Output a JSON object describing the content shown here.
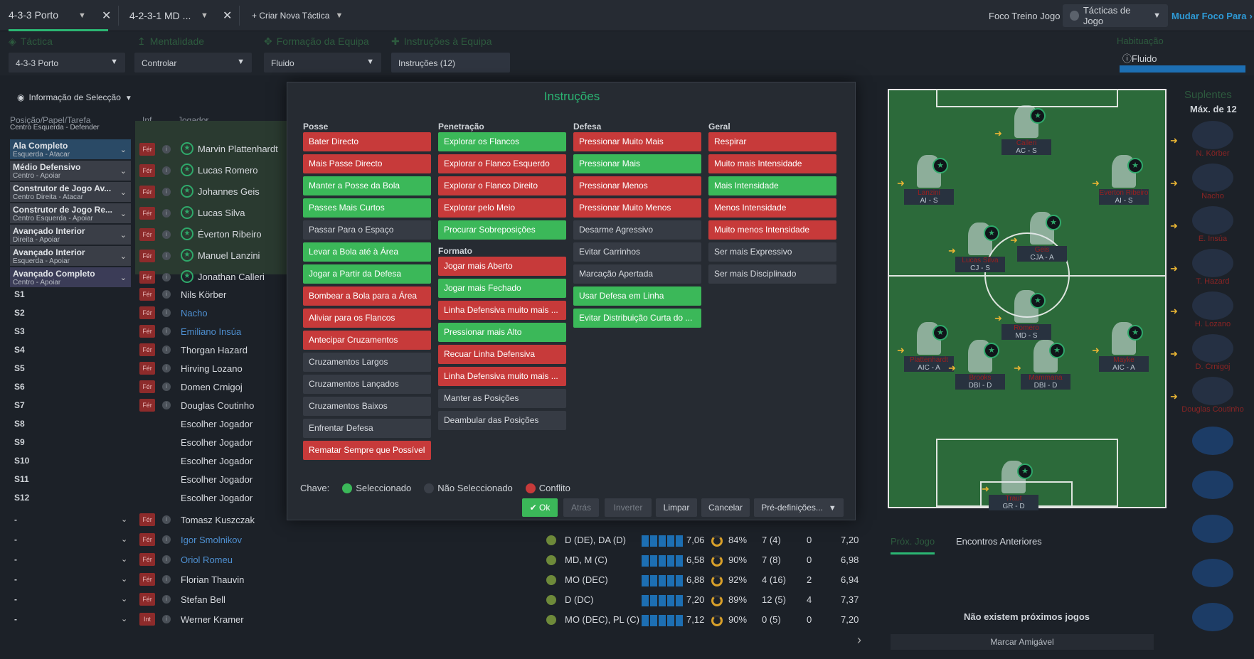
{
  "topbar": {
    "tabs": [
      {
        "label": "4-3-3 Porto"
      },
      {
        "label": "4-2-3-1 MD ..."
      }
    ],
    "new_tactic": "+ Criar Nova Táctica",
    "focus_label": "Foco Treino Jogo",
    "tactics_pill": "Tácticas de Jogo",
    "change_focus": "Mudar Foco Para"
  },
  "settings": {
    "tactic": {
      "label": "Táctica",
      "value": "4-3-3 Porto"
    },
    "mentality": {
      "label": "Mentalidade",
      "value": "Controlar"
    },
    "formation": {
      "label": "Formação da Equipa",
      "value": "Fluido"
    },
    "instructions": {
      "label": "Instruções à Equipa",
      "value": "Instruções (12)"
    },
    "habituation": {
      "label": "Habituação",
      "value": "Fluido"
    }
  },
  "left": {
    "info_selection": "Informação de Selecção",
    "col_position": "Posição/Papel/Tarefa",
    "col_inf": "Inf",
    "col_player": "Jogador",
    "cut_row": "Centro Esquerda - Defender",
    "roles": [
      {
        "title": "Ala Completo",
        "sub": "Esquerda - Atacar",
        "player": "Marvin Plattenhardt"
      },
      {
        "title": "Médio Defensivo",
        "sub": "Centro - Apoiar",
        "player": "Lucas Romero"
      },
      {
        "title": "Construtor de Jogo Av...",
        "sub": "Centro Direita - Atacar",
        "player": "Johannes Geis"
      },
      {
        "title": "Construtor de Jogo Re...",
        "sub": "Centro Esquerda - Apoiar",
        "player": "Lucas Silva"
      },
      {
        "title": "Avançado Interior",
        "sub": "Direita - Apoiar",
        "player": "Éverton Ribeiro"
      },
      {
        "title": "Avançado Interior",
        "sub": "Esquerda - Apoiar",
        "player": "Manuel Lanzini"
      },
      {
        "title": "Avançado Completo",
        "sub": "Centro - Apoiar",
        "player": "Jonathan Calleri"
      }
    ],
    "subs": [
      {
        "slot": "S1",
        "player": "Nils Körber"
      },
      {
        "slot": "S2",
        "player": "Nacho"
      },
      {
        "slot": "S3",
        "player": "Emiliano Insúa"
      },
      {
        "slot": "S4",
        "player": "Thorgan Hazard"
      },
      {
        "slot": "S5",
        "player": "Hirving Lozano"
      },
      {
        "slot": "S6",
        "player": "Domen Crnigoj"
      },
      {
        "slot": "S7",
        "player": "Douglas Coutinho"
      },
      {
        "slot": "S8",
        "player": "Escolher Jogador"
      },
      {
        "slot": "S9",
        "player": "Escolher Jogador"
      },
      {
        "slot": "S10",
        "player": "Escolher Jogador"
      },
      {
        "slot": "S11",
        "player": "Escolher Jogador"
      },
      {
        "slot": "S12",
        "player": "Escolher Jogador"
      }
    ],
    "fer": "Fér",
    "int": "Int",
    "reserves": [
      {
        "slot": "-",
        "player": "Tomasz Kuszczak",
        "pos": "",
        "rating": "",
        "pct": "",
        "apps": "",
        "goals": "",
        "avg": ""
      },
      {
        "slot": "-",
        "player": "Igor Smolnikov",
        "pos": "D (DE), DA (D)",
        "rating": "7,06",
        "pct": "84%",
        "apps": "7 (4)",
        "goals": "0",
        "avg": "7,20"
      },
      {
        "slot": "-",
        "player": "Oriol Romeu",
        "pos": "MD, M (C)",
        "rating": "6,58",
        "pct": "90%",
        "apps": "7 (8)",
        "goals": "0",
        "avg": "6,98"
      },
      {
        "slot": "-",
        "player": "Florian Thauvin",
        "pos": "MO (DEC)",
        "rating": "6,88",
        "pct": "92%",
        "apps": "4 (16)",
        "goals": "2",
        "avg": "6,94"
      },
      {
        "slot": "-",
        "player": "Stefan Bell",
        "pos": "D (DC)",
        "rating": "7,20",
        "pct": "89%",
        "apps": "12 (5)",
        "goals": "4",
        "avg": "7,37"
      },
      {
        "slot": "-",
        "player": "Werner Kramer",
        "pos": "MO (DEC), PL (C)",
        "rating": "7,12",
        "pct": "90%",
        "apps": "0 (5)",
        "goals": "0",
        "avg": "7,20"
      }
    ]
  },
  "modal": {
    "title": "Instruções",
    "columns": [
      {
        "title": "Posse",
        "items": [
          {
            "label": "Bater Directo",
            "state": "r"
          },
          {
            "label": "Mais Passe Directo",
            "state": "r"
          },
          {
            "label": "Manter a Posse da Bola",
            "state": "g"
          },
          {
            "label": "Passes Mais Curtos",
            "state": "g"
          },
          {
            "label": "Passar Para o Espaço",
            "state": "n"
          },
          {
            "label": "Levar a Bola até à Área",
            "state": "g"
          },
          {
            "label": "Jogar a Partir da Defesa",
            "state": "g"
          },
          {
            "label": "Bombear a Bola para a Área",
            "state": "r"
          },
          {
            "label": "Aliviar para os Flancos",
            "state": "r"
          },
          {
            "label": "Antecipar Cruzamentos",
            "state": "r"
          },
          {
            "label": "Cruzamentos Largos",
            "state": "n"
          },
          {
            "label": "Cruzamentos Lançados",
            "state": "n"
          },
          {
            "label": "Cruzamentos Baixos",
            "state": "n"
          },
          {
            "label": "Enfrentar Defesa",
            "state": "n"
          },
          {
            "label": "Rematar Sempre que Possível",
            "state": "r"
          }
        ]
      },
      {
        "title": "Penetração",
        "items": [
          {
            "label": "Explorar os Flancos",
            "state": "g"
          },
          {
            "label": "Explorar o Flanco Esquerdo",
            "state": "r"
          },
          {
            "label": "Explorar o Flanco Direito",
            "state": "r"
          },
          {
            "label": "Explorar pelo Meio",
            "state": "r"
          },
          {
            "label": "Procurar Sobreposições",
            "state": "g"
          }
        ]
      },
      {
        "title": "Formato",
        "items": [
          {
            "label": "Jogar mais Aberto",
            "state": "r"
          },
          {
            "label": "Jogar mais Fechado",
            "state": "g"
          },
          {
            "label": "Linha Defensiva muito mais ...",
            "state": "r"
          },
          {
            "label": "Pressionar mais Alto",
            "state": "g"
          },
          {
            "label": "Recuar Linha Defensiva",
            "state": "r"
          },
          {
            "label": "Linha Defensiva muito mais ...",
            "state": "r"
          },
          {
            "label": "Manter as Posições",
            "state": "n"
          },
          {
            "label": "Deambular das Posições",
            "state": "n"
          }
        ]
      },
      {
        "title": "Defesa",
        "items": [
          {
            "label": "Pressionar Muito Mais",
            "state": "r"
          },
          {
            "label": "Pressionar Mais",
            "state": "g"
          },
          {
            "label": "Pressionar Menos",
            "state": "r"
          },
          {
            "label": "Pressionar Muito Menos",
            "state": "r"
          },
          {
            "label": "Desarme Agressivo",
            "state": "n"
          },
          {
            "label": "Evitar Carrinhos",
            "state": "n"
          },
          {
            "label": "Marcação Apertada",
            "state": "n"
          },
          {
            "label": "Usar Defesa em Linha",
            "state": "g"
          },
          {
            "label": "Evitar Distribuição Curta do ...",
            "state": "g"
          }
        ]
      },
      {
        "title": "Geral",
        "items": [
          {
            "label": "Respirar",
            "state": "r"
          },
          {
            "label": "Muito mais Intensidade",
            "state": "r"
          },
          {
            "label": "Mais Intensidade",
            "state": "g"
          },
          {
            "label": "Menos Intensidade",
            "state": "r"
          },
          {
            "label": "Muito menos Intensidade",
            "state": "r"
          },
          {
            "label": "Ser mais Expressivo",
            "state": "n"
          },
          {
            "label": "Ser mais Disciplinado",
            "state": "n"
          }
        ]
      }
    ],
    "key_label": "Chave:",
    "key_selected": "Seleccionado",
    "key_unselected": "Não Seleccionado",
    "key_conflict": "Conflito",
    "buttons": {
      "ok": "Ok",
      "back": "Atrás",
      "invert": "Inverter",
      "clear": "Limpar",
      "cancel": "Cancelar",
      "presets": "Pré-definições..."
    }
  },
  "pitch": {
    "players": [
      {
        "name": "Calleri",
        "role": "AC - S"
      },
      {
        "name": "Lanzini",
        "role": "AI - S"
      },
      {
        "name": "Everton Ribeiro",
        "role": "AI - S"
      },
      {
        "name": "Lucas Silva",
        "role": "CJ - S"
      },
      {
        "name": "Geis",
        "role": "CJA - A"
      },
      {
        "name": "Romero",
        "role": "MD - S"
      },
      {
        "name": "Plattenhardt",
        "role": "AIC - A"
      },
      {
        "name": "Brooks",
        "role": "DBI - D"
      },
      {
        "name": "Mammana",
        "role": "DBI - D"
      },
      {
        "name": "Mayke",
        "role": "AIC - A"
      },
      {
        "name": "Traut",
        "role": "GR - D"
      }
    ]
  },
  "subs_panel": {
    "title": "Suplentes",
    "max": "Máx. de 12",
    "names": [
      "N. Körber",
      "Nacho",
      "E. Insúa",
      "T. Hazard",
      "H. Lozano",
      "D. Crnigoj",
      "Douglas Coutinho"
    ]
  },
  "bottom_right": {
    "tab1": "Próx. Jogo",
    "tab2": "Encontros Anteriores",
    "no_games": "Não existem próximos jogos",
    "friendly": "Marcar Amigável"
  }
}
